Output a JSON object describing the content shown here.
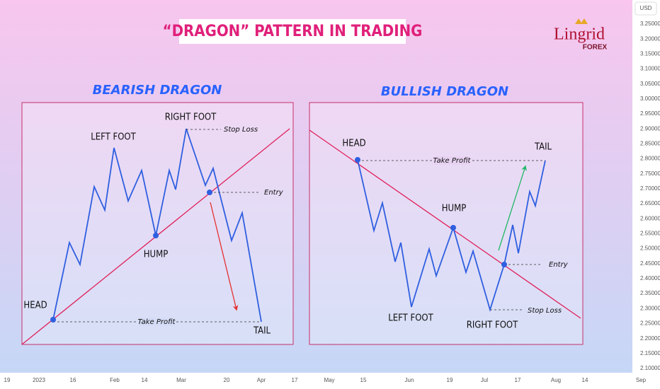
{
  "header": {
    "title": "“DRAGON” PATTERN IN TRADING",
    "logo": "Lingrid",
    "logo_sub": "FOREX"
  },
  "bearish": {
    "heading": "BEARISH DRAGON",
    "head": "HEAD",
    "left_foot": "LEFT FOOT",
    "right_foot": "RIGHT FOOT",
    "hump": "HUMP",
    "tail": "TAIL",
    "stop_loss": "Stop Loss",
    "entry": "Entry",
    "take_profit": "Take Profit"
  },
  "bullish": {
    "heading": "BULLISH DRAGON",
    "head": "HEAD",
    "left_foot": "LEFT FOOT",
    "right_foot": "RIGHT FOOT",
    "hump": "HUMP",
    "tail": "TAIL",
    "stop_loss": "Stop Loss",
    "entry": "Entry",
    "take_profit": "Take Profit"
  },
  "price_axis": {
    "currency": "USD",
    "labels": [
      "3.25000",
      "3.20000",
      "3.15000",
      "3.10000",
      "3.05000",
      "3.00000",
      "2.95000",
      "2.90000",
      "2.85000",
      "2.80000",
      "2.75000",
      "2.70000",
      "2.65000",
      "2.60000",
      "2.55000",
      "2.50000",
      "2.45000",
      "2.40000",
      "2.35000",
      "2.30000",
      "2.25000",
      "2.20000",
      "2.15000",
      "2.10000"
    ]
  },
  "time_axis": {
    "labels": [
      "19",
      "2023",
      "16",
      "Feb",
      "14",
      "Mar",
      "20",
      "Apr",
      "17",
      "May",
      "15",
      "Jun",
      "19",
      "Jul",
      "17",
      "Aug",
      "14",
      "Sep"
    ]
  }
}
